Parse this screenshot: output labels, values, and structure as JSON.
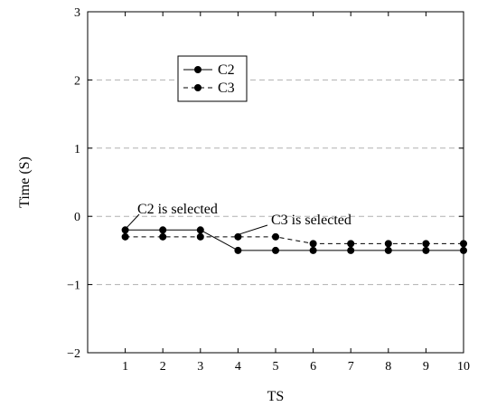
{
  "chart_data": {
    "type": "line",
    "title": "",
    "xlabel": "TS",
    "ylabel": "Time (S)",
    "x": [
      1,
      2,
      3,
      4,
      5,
      6,
      7,
      8,
      9,
      10
    ],
    "xlim": [
      0,
      10
    ],
    "ylim": [
      -2,
      3
    ],
    "xticks": [
      1,
      2,
      3,
      4,
      5,
      6,
      7,
      8,
      9,
      10
    ],
    "yticks": [
      -2,
      -1,
      0,
      1,
      2,
      3
    ],
    "ytick_labels": [
      "−2",
      "−1",
      "0",
      "1",
      "2",
      "3"
    ],
    "grid": "horizontal dashed",
    "legend_position": "top-left",
    "series": [
      {
        "name": "C2",
        "style": "solid",
        "color": "#000000",
        "values": [
          -0.2,
          -0.2,
          -0.2,
          -0.5,
          -0.5,
          -0.5,
          -0.5,
          -0.5,
          -0.5,
          -0.5
        ]
      },
      {
        "name": "C3",
        "style": "dashed",
        "color": "#000000",
        "values": [
          -0.3,
          -0.3,
          -0.3,
          -0.3,
          -0.3,
          -0.4,
          -0.4,
          -0.4,
          -0.4,
          -0.4
        ]
      }
    ],
    "annotations": [
      {
        "text": "C2 is selected",
        "x": 1,
        "y": -0.2
      },
      {
        "text": "C3 is selected",
        "x": 4,
        "y": -0.3
      }
    ]
  }
}
